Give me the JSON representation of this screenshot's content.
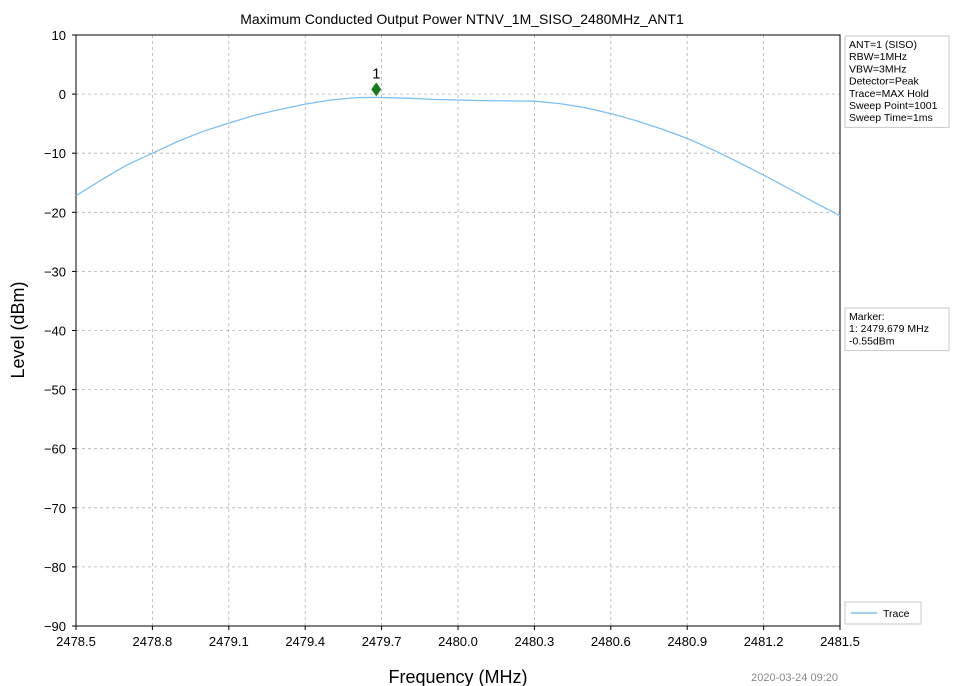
{
  "chart_data": {
    "type": "line",
    "title": "Maximum Conducted Output Power NTNV_1M_SISO_2480MHz_ANT1",
    "xlabel": "Frequency (MHz)",
    "ylabel": "Level (dBm)",
    "xlim": [
      2478.5,
      2481.5
    ],
    "ylim": [
      -90,
      10
    ],
    "xticks": [
      "2478.5",
      "2478.8",
      "2479.1",
      "2479.4",
      "2479.7",
      "2480.0",
      "2480.3",
      "2480.6",
      "2480.9",
      "2481.2",
      "2481.5"
    ],
    "yticks": [
      "10",
      "0",
      "−10",
      "−20",
      "−30",
      "−40",
      "−50",
      "−60",
      "−70",
      "−80",
      "−90"
    ],
    "grid": true,
    "series": [
      {
        "name": "Trace",
        "color": "#7fbfef",
        "x": [
          2478.5,
          2478.6,
          2478.7,
          2478.8,
          2478.9,
          2479.0,
          2479.1,
          2479.2,
          2479.3,
          2479.4,
          2479.5,
          2479.6,
          2479.679,
          2479.8,
          2479.9,
          2480.0,
          2480.1,
          2480.2,
          2480.3,
          2480.4,
          2480.5,
          2480.6,
          2480.7,
          2480.8,
          2480.9,
          2481.0,
          2481.1,
          2481.2,
          2481.3,
          2481.4,
          2481.5
        ],
        "y": [
          -17.2,
          -14.5,
          -12.0,
          -10.0,
          -8.0,
          -6.3,
          -4.9,
          -3.6,
          -2.6,
          -1.7,
          -1.0,
          -0.6,
          -0.55,
          -0.7,
          -0.9,
          -1.0,
          -1.1,
          -1.15,
          -1.2,
          -1.6,
          -2.3,
          -3.3,
          -4.5,
          -5.9,
          -7.5,
          -9.4,
          -11.5,
          -13.7,
          -16.0,
          -18.3,
          -20.6
        ]
      }
    ],
    "marker": {
      "label": "1",
      "x": 2479.679,
      "y": 0.8,
      "color": "#1a7a1a"
    },
    "info_box": [
      "ANT=1 (SISO)",
      "RBW=1MHz",
      "VBW=3MHz",
      "Detector=Peak",
      "Trace=MAX Hold",
      "Sweep Point=1001",
      "Sweep Time=1ms"
    ],
    "marker_box": [
      "Marker:",
      "1: 2479.679 MHz",
      "    -0.55dBm"
    ],
    "legend": {
      "placement": "bottom-right",
      "entries": [
        "Trace"
      ]
    }
  },
  "timestamp": "2020-03-24 09:20"
}
